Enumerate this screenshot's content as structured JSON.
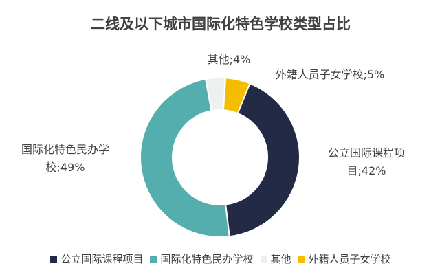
{
  "chart_data": {
    "type": "pie",
    "style": "donut",
    "title": "二线及以下城市国际化特色学校类型占比",
    "slices": [
      {
        "name": "公立国际课程项目",
        "value": 42,
        "label": "公立国际课程项目;42%",
        "label_lines": [
          "公立国际课程项",
          "目;42%"
        ],
        "color": "#222a45"
      },
      {
        "name": "国际化特色民办学校",
        "value": 49,
        "label": "国际化特色民办学校;49%",
        "label_lines": [
          "国际化特色民办学",
          "校;49%"
        ],
        "color": "#55aeae"
      },
      {
        "name": "其他",
        "value": 4,
        "label": "其他;4%",
        "label_lines": [
          "其他;4%"
        ],
        "color": "#eef0f0"
      },
      {
        "name": "外籍人员子女学校",
        "value": 5,
        "label": "外籍人员子女学校;5%",
        "label_lines": [
          "外籍人员子女学校;5%"
        ],
        "color": "#f5bd00"
      }
    ],
    "legend_position": "bottom"
  }
}
